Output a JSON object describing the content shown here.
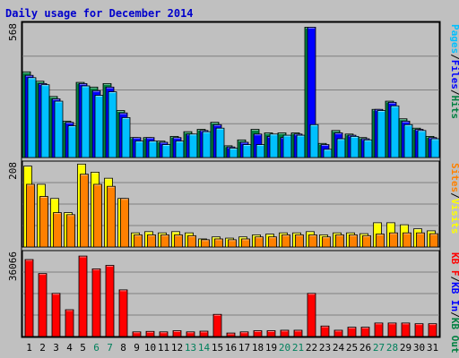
{
  "chart_data": {
    "type": "bar",
    "title": "Daily usage for December 2014",
    "categories": [
      "1",
      "2",
      "3",
      "4",
      "5",
      "6",
      "7",
      "8",
      "9",
      "10",
      "11",
      "12",
      "13",
      "14",
      "15",
      "16",
      "17",
      "18",
      "19",
      "20",
      "21",
      "22",
      "23",
      "24",
      "25",
      "26",
      "27",
      "28",
      "29",
      "30",
      "31"
    ],
    "weekend_days": [
      "6",
      "7",
      "13",
      "14",
      "20",
      "21",
      "27",
      "28"
    ],
    "panels": [
      {
        "ymax_label": "568",
        "ylim": [
          0,
          568
        ],
        "legend": [
          "Pages",
          "/",
          "Files",
          "/",
          "Hits"
        ],
        "series": [
          {
            "name": "Hits",
            "color": "#008040",
            "values": [
              365,
              325,
              260,
              155,
              320,
              300,
              315,
              200,
              85,
              85,
              70,
              90,
              110,
              120,
              150,
              50,
              75,
              120,
              105,
              105,
              105,
              555,
              60,
              115,
              100,
              85,
              205,
              240,
              165,
              125,
              90
            ]
          },
          {
            "name": "Files",
            "color": "#0000ff",
            "values": [
              350,
              315,
              250,
              150,
              315,
              285,
              300,
              190,
              85,
              85,
              65,
              85,
              100,
              115,
              140,
              45,
              65,
              100,
              90,
              85,
              100,
              555,
              55,
              105,
              95,
              80,
              205,
              235,
              155,
              120,
              85
            ]
          },
          {
            "name": "Pages",
            "color": "#00c0ff",
            "values": [
              340,
              310,
              240,
              135,
              305,
              265,
              280,
              170,
              70,
              70,
              55,
              70,
              100,
              110,
              125,
              40,
              55,
              55,
              100,
              95,
              95,
              140,
              35,
              80,
              90,
              75,
              200,
              220,
              140,
              115,
              80
            ]
          }
        ]
      },
      {
        "ymax_label": "208",
        "ylim": [
          0,
          208
        ],
        "legend": [
          "Sites",
          "/",
          "Visits"
        ],
        "series": [
          {
            "name": "Visits",
            "color": "#ffff00",
            "values": [
              200,
              155,
              120,
              85,
              205,
              185,
              170,
              120,
              35,
              38,
              35,
              38,
              35,
              20,
              25,
              22,
              25,
              30,
              32,
              35,
              35,
              38,
              30,
              35,
              35,
              33,
              60,
              60,
              55,
              45,
              40
            ]
          },
          {
            "name": "Sites",
            "color": "#ff8000",
            "values": [
              155,
              125,
              85,
              80,
              180,
              155,
              150,
              120,
              30,
              30,
              30,
              30,
              28,
              18,
              20,
              18,
              20,
              25,
              25,
              30,
              30,
              30,
              25,
              30,
              30,
              28,
              32,
              35,
              35,
              35,
              33
            ]
          }
        ]
      },
      {
        "ymax_label": "36066",
        "ylim": [
          0,
          36066
        ],
        "legend": [
          "KB F",
          "/",
          "KB In",
          "/",
          "KB Out"
        ],
        "series": [
          {
            "name": "KB F",
            "color": "#ff0000",
            "values": [
              33000,
              27000,
              18500,
              11500,
              34500,
              29000,
              30500,
              20000,
              2000,
              2200,
              2000,
              2500,
              2000,
              2300,
              9500,
              1500,
              2000,
              2500,
              2500,
              2700,
              2700,
              18500,
              4500,
              2700,
              4000,
              4000,
              5800,
              5800,
              5800,
              5500,
              5500
            ]
          }
        ]
      }
    ],
    "colors": {
      "background": "#c0c0c0",
      "plot_area": "#c0c0c0",
      "frame": "#000000",
      "weekday_label": "#000000",
      "weekend_label": "#00805c",
      "slash": "#000000",
      "kb_in": "#0000ff",
      "kb_out": "#008040"
    },
    "grid": true,
    "legend_placement": "right (vertical)"
  }
}
